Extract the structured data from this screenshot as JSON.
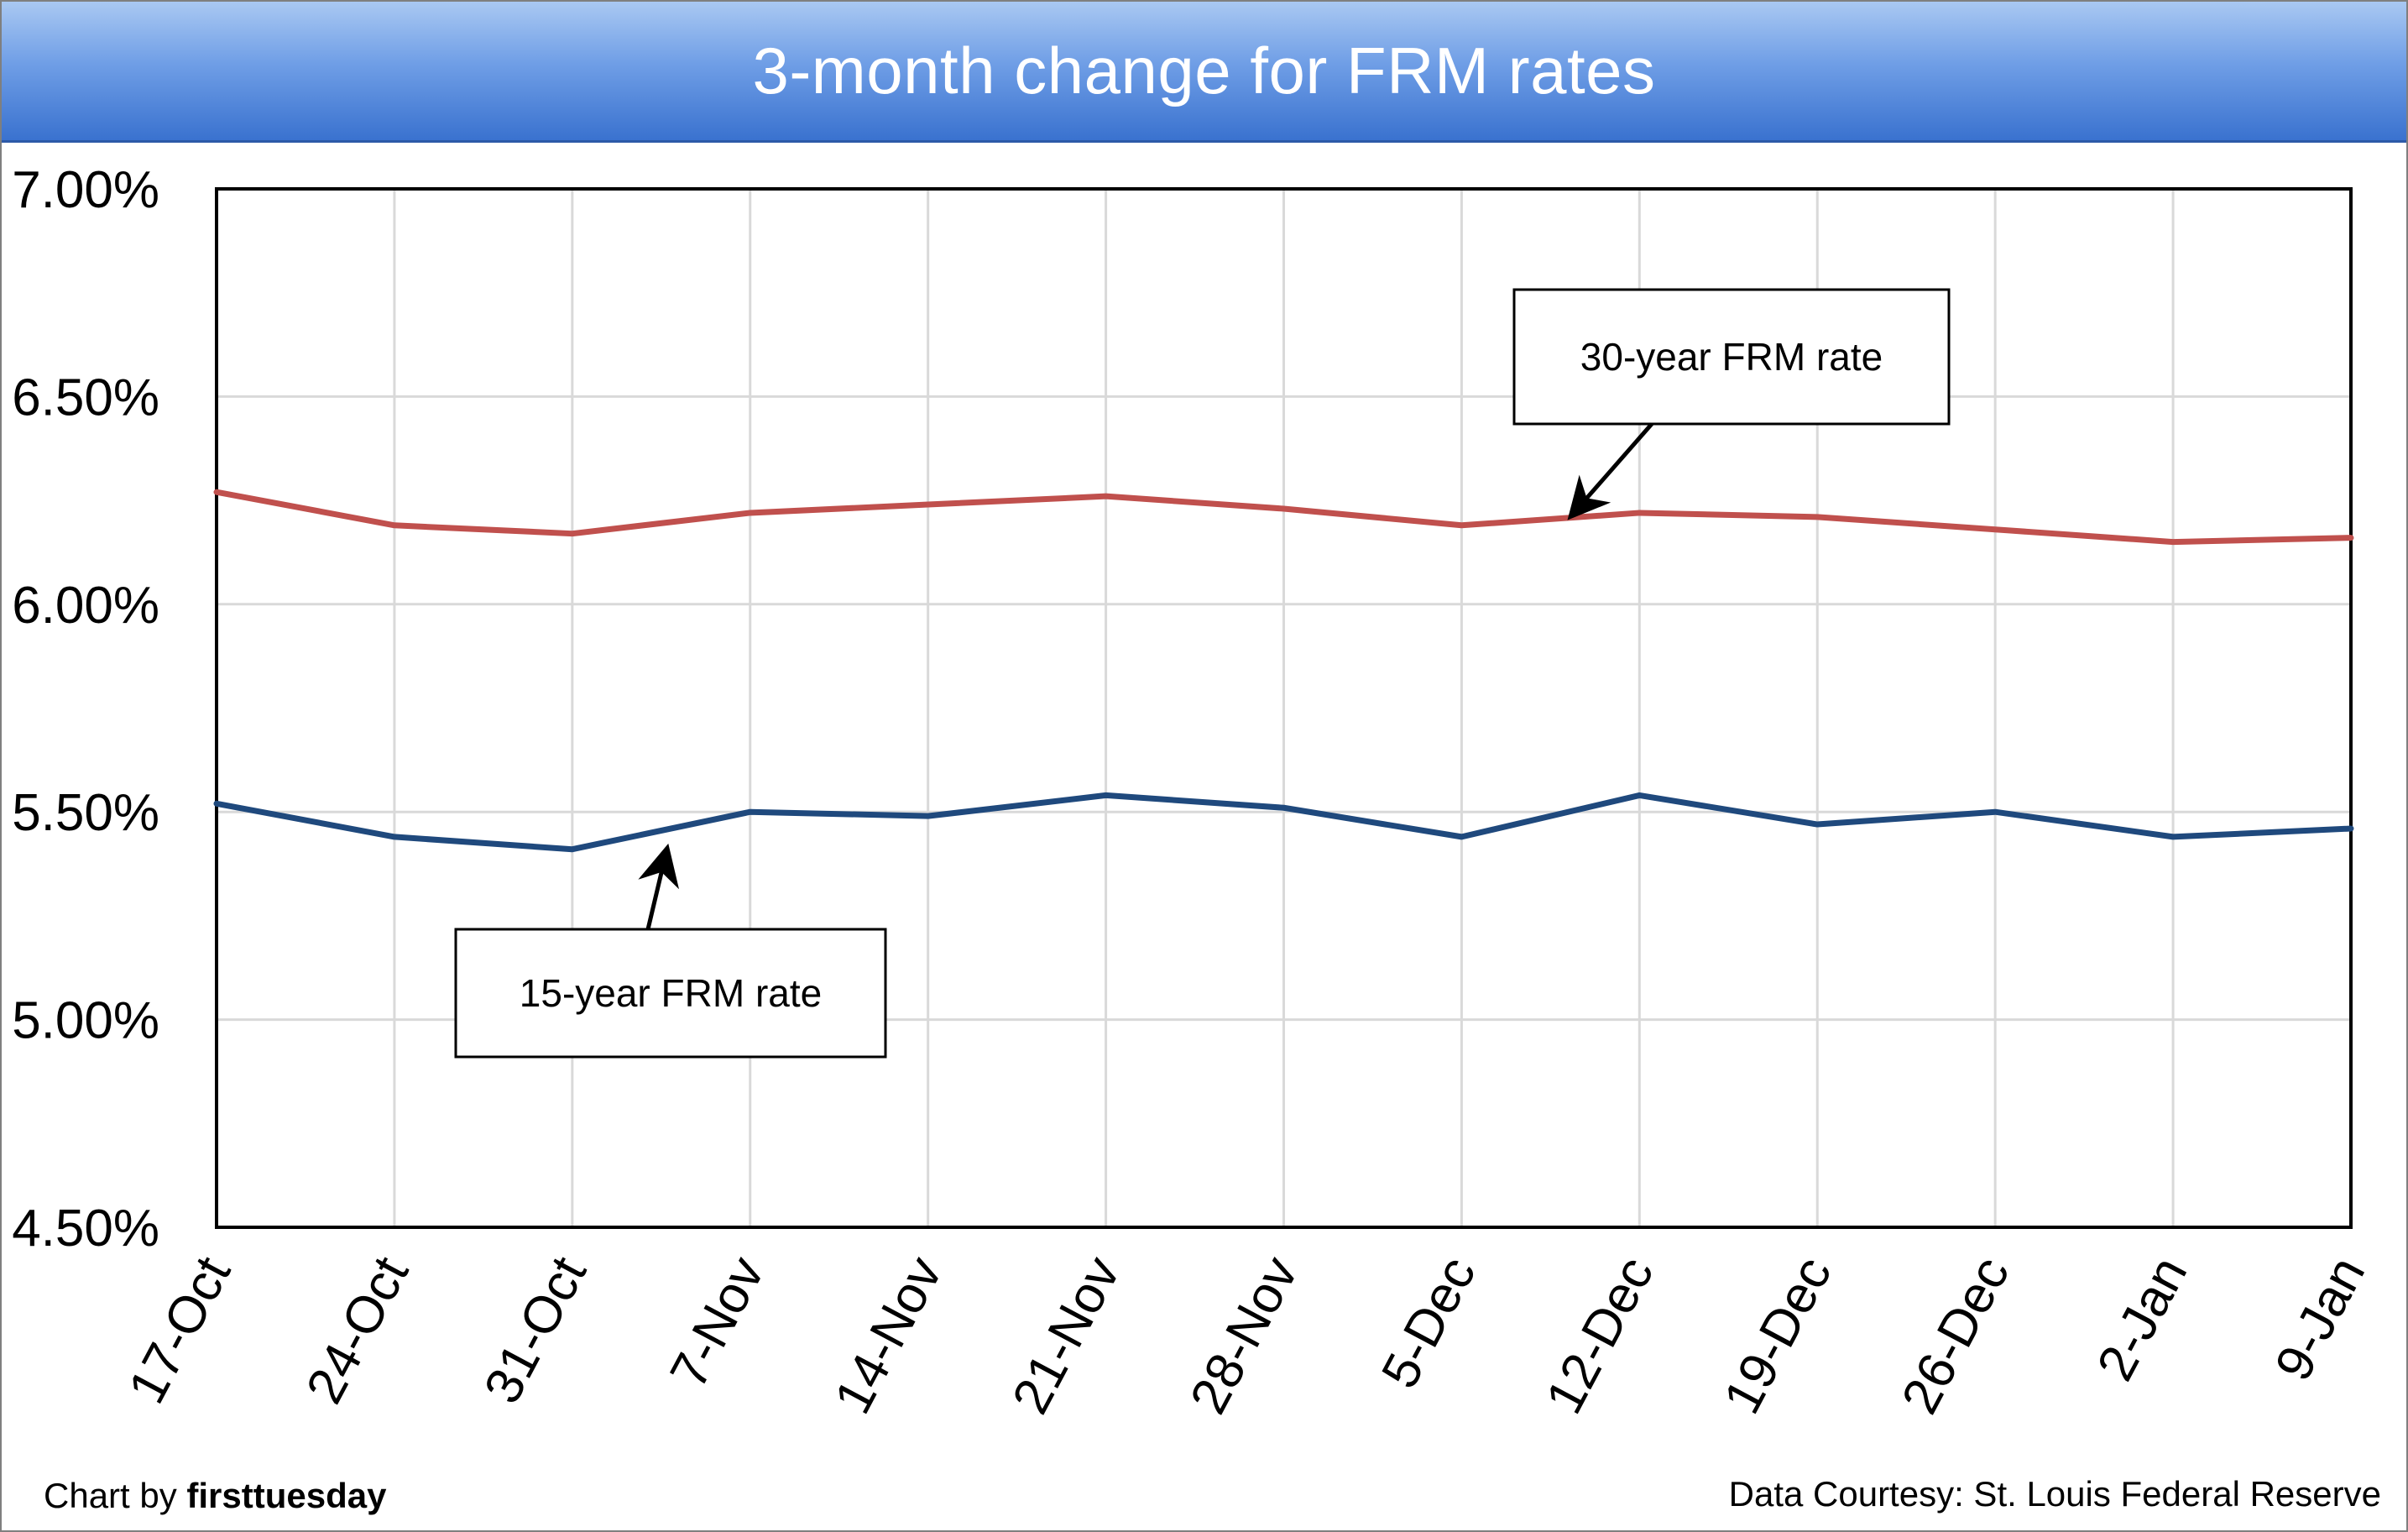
{
  "header": {
    "title": "3-month change for FRM rates"
  },
  "footer": {
    "credit_prefix": "Chart by ",
    "credit_brand": "firsttuesday",
    "source": "Data Courtesy: St. Louis Federal Reserve"
  },
  "chart_data": {
    "type": "line",
    "title": "3-month change for FRM rates",
    "xlabel": "",
    "ylabel": "",
    "categories": [
      "17-Oct",
      "24-Oct",
      "31-Oct",
      "7-Nov",
      "14-Nov",
      "21-Nov",
      "28-Nov",
      "5-Dec",
      "12-Dec",
      "19-Dec",
      "26-Dec",
      "2-Jan",
      "9-Jan"
    ],
    "ylim": [
      4.5,
      7.0
    ],
    "yticks": [
      4.5,
      5.0,
      5.5,
      6.0,
      6.5,
      7.0
    ],
    "ytick_labels": [
      "4.50%",
      "5.00%",
      "5.50%",
      "6.00%",
      "6.50%",
      "7.00%"
    ],
    "grid": true,
    "series": [
      {
        "name": "30-year FRM rate",
        "color": "#c0504d",
        "values": [
          6.27,
          6.19,
          6.17,
          6.22,
          6.24,
          6.26,
          6.23,
          6.19,
          6.22,
          6.21,
          6.18,
          6.15,
          6.16
        ]
      },
      {
        "name": "15-year FRM rate",
        "color": "#1f497d",
        "values": [
          5.52,
          5.44,
          5.41,
          5.5,
          5.49,
          5.54,
          5.51,
          5.44,
          5.54,
          5.47,
          5.5,
          5.44,
          5.46
        ]
      }
    ],
    "annotations": [
      "30-year FRM rate",
      "15-year FRM rate"
    ]
  }
}
